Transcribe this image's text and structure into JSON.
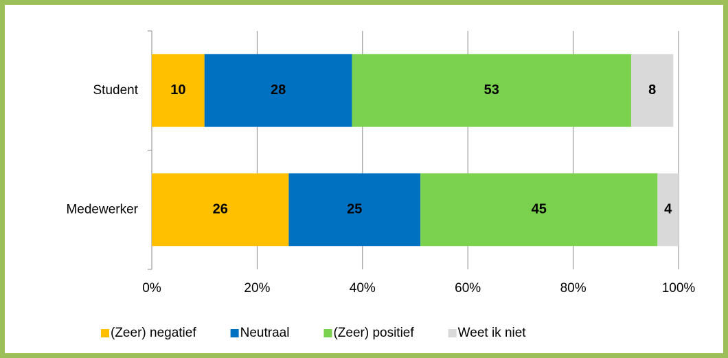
{
  "chart_data": {
    "type": "bar",
    "orientation": "horizontal",
    "stacked": true,
    "categories": [
      "Student",
      "Medewerker"
    ],
    "series": [
      {
        "name": "(Zeer) negatief",
        "color": "#ffc000",
        "values": [
          10,
          26
        ]
      },
      {
        "name": "Neutraal",
        "color": "#0070c0",
        "values": [
          28,
          25
        ]
      },
      {
        "name": "(Zeer) positief",
        "color": "#7ad24e",
        "values": [
          53,
          45
        ]
      },
      {
        "name": "Weet ik niet",
        "color": "#d9d9d9",
        "values": [
          8,
          4
        ]
      }
    ],
    "xlim": [
      0,
      100
    ],
    "xticks": [
      {
        "value": 0,
        "label": "0%"
      },
      {
        "value": 20,
        "label": "20%"
      },
      {
        "value": 40,
        "label": "40%"
      },
      {
        "value": 60,
        "label": "60%"
      },
      {
        "value": 80,
        "label": "80%"
      },
      {
        "value": 100,
        "label": "100%"
      }
    ],
    "grid": true,
    "legend": "bottom"
  }
}
